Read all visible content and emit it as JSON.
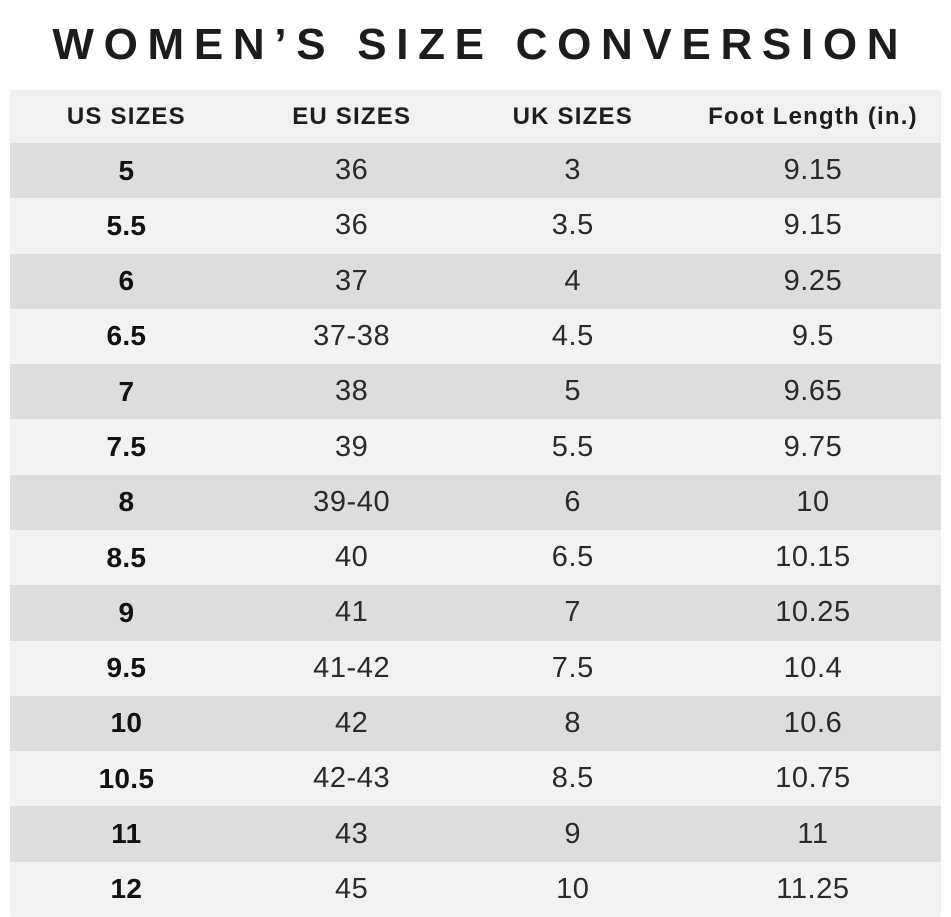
{
  "title": "WOMEN’S SIZE CONVERSION",
  "table": {
    "headers": [
      "US SIZES",
      "EU SIZES",
      "UK SIZES",
      "Foot Length (in.)"
    ],
    "rows": [
      [
        "5",
        "36",
        "3",
        "9.15"
      ],
      [
        "5.5",
        "36",
        "3.5",
        "9.15"
      ],
      [
        "6",
        "37",
        "4",
        "9.25"
      ],
      [
        "6.5",
        "37-38",
        "4.5",
        "9.5"
      ],
      [
        "7",
        "38",
        "5",
        "9.65"
      ],
      [
        "7.5",
        "39",
        "5.5",
        "9.75"
      ],
      [
        "8",
        "39-40",
        "6",
        "10"
      ],
      [
        "8.5",
        "40",
        "6.5",
        "10.15"
      ],
      [
        "9",
        "41",
        "7",
        "10.25"
      ],
      [
        "9.5",
        "41-42",
        "7.5",
        "10.4"
      ],
      [
        "10",
        "42",
        "8",
        "10.6"
      ],
      [
        "10.5",
        "42-43",
        "8.5",
        "10.75"
      ],
      [
        "11",
        "43",
        "9",
        "11"
      ],
      [
        "12",
        "45",
        "10",
        "11.25"
      ]
    ]
  },
  "colors": {
    "row_dark": "#dcddde",
    "row_light": "#f2f2f2",
    "header_bg": "#f1f1f0",
    "title_text": "#1c1c1c",
    "body_text": "#2a2a2a"
  },
  "chart_data": {
    "type": "table",
    "title": "WOMEN’S SIZE CONVERSION",
    "columns": [
      "US SIZES",
      "EU SIZES",
      "UK SIZES",
      "Foot Length (in.)"
    ],
    "rows": [
      [
        "5",
        "36",
        "3",
        9.15
      ],
      [
        "5.5",
        "36",
        "3.5",
        9.15
      ],
      [
        "6",
        "37",
        "4",
        9.25
      ],
      [
        "6.5",
        "37-38",
        "4.5",
        9.5
      ],
      [
        "7",
        "38",
        "5",
        9.65
      ],
      [
        "7.5",
        "39",
        "5.5",
        9.75
      ],
      [
        "8",
        "39-40",
        "6",
        10
      ],
      [
        "8.5",
        "40",
        "6.5",
        10.15
      ],
      [
        "9",
        "41",
        "7",
        10.25
      ],
      [
        "9.5",
        "41-42",
        "7.5",
        10.4
      ],
      [
        "10",
        "42",
        "8",
        10.6
      ],
      [
        "10.5",
        "42-43",
        "8.5",
        10.75
      ],
      [
        "11",
        "43",
        "9",
        11
      ],
      [
        "12",
        "45",
        "10",
        11.25
      ]
    ],
    "layout": {
      "striped": true,
      "stripe_order": [
        "dark",
        "light"
      ],
      "first_column_bold": true,
      "grid": false,
      "legend": "none"
    }
  }
}
